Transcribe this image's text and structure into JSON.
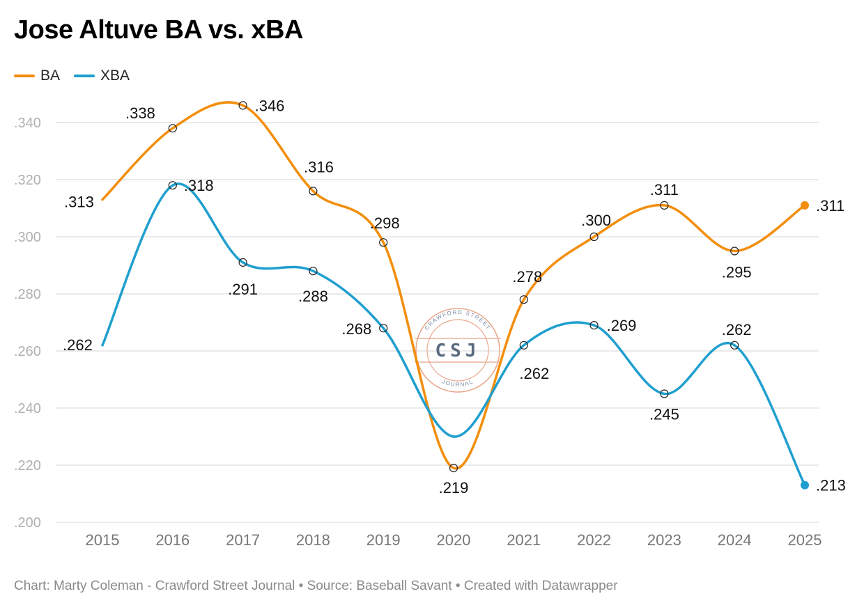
{
  "title": "Jose Altuve BA vs. xBA",
  "footer": "Chart: Marty Coleman - Crawford Street Journal • Source: Baseball Savant • Created with Datawrapper",
  "watermark": {
    "top_text": "CRAWFORD STREET",
    "center_text": "CSJ",
    "bottom_text": "JOURNAL",
    "color": "#e8a58a",
    "center_color": "#5a6a80"
  },
  "chart_data": {
    "type": "line",
    "title": "Jose Altuve BA vs. xBA",
    "xlabel": "",
    "ylabel": "",
    "x": [
      "2015",
      "2016",
      "2017",
      "2018",
      "2019",
      "2020",
      "2021",
      "2022",
      "2023",
      "2024",
      "2025"
    ],
    "ylim": [
      0.2,
      0.35
    ],
    "yticks": [
      0.2,
      0.22,
      0.24,
      0.26,
      0.28,
      0.3,
      0.32,
      0.34
    ],
    "ytick_labels": [
      ".200",
      ".220",
      ".240",
      ".260",
      ".280",
      ".300",
      ".320",
      ".340"
    ],
    "grid": true,
    "legend": "top-left",
    "series": [
      {
        "name": "BA",
        "color": "#f28e0c",
        "values": [
          0.313,
          0.338,
          0.346,
          0.316,
          0.298,
          0.219,
          0.278,
          0.3,
          0.311,
          0.295,
          0.311
        ],
        "labels": [
          ".313",
          ".338",
          ".346",
          ".316",
          ".298",
          ".219",
          ".278",
          ".300",
          ".311",
          ".295",
          ".311"
        ]
      },
      {
        "name": "XBA",
        "color": "#1f9fcf",
        "values": [
          0.262,
          0.318,
          0.291,
          0.288,
          0.268,
          0.23,
          0.262,
          0.269,
          0.245,
          0.262,
          0.213
        ],
        "labels": [
          ".262",
          ".318",
          ".291",
          ".288",
          ".268",
          "",
          ".262",
          ".269",
          ".245",
          ".262",
          ".213"
        ]
      }
    ]
  }
}
